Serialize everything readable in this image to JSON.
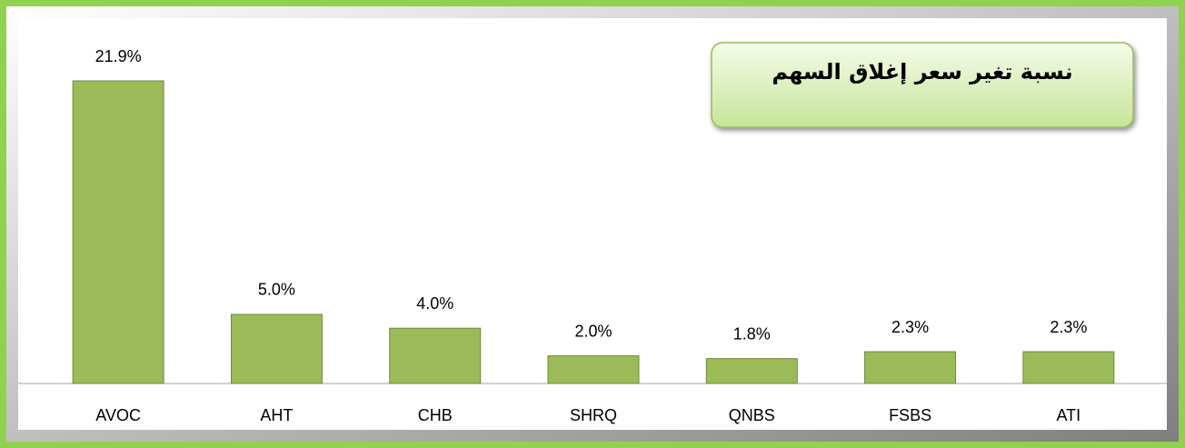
{
  "chart_data": {
    "type": "bar",
    "title": "نسبة تغير سعر إغلاق السهم",
    "categories": [
      "AVOC",
      "AHT",
      "CHB",
      "SHRQ",
      "QNBS",
      "FSBS",
      "ATI"
    ],
    "values": [
      21.9,
      5.0,
      4.0,
      2.0,
      1.8,
      2.3,
      2.3
    ],
    "value_labels": [
      "21.9%",
      "5.0%",
      "4.0%",
      "2.0%",
      "1.8%",
      "2.3%",
      "2.3%"
    ],
    "color": "#9bbb59"
  }
}
